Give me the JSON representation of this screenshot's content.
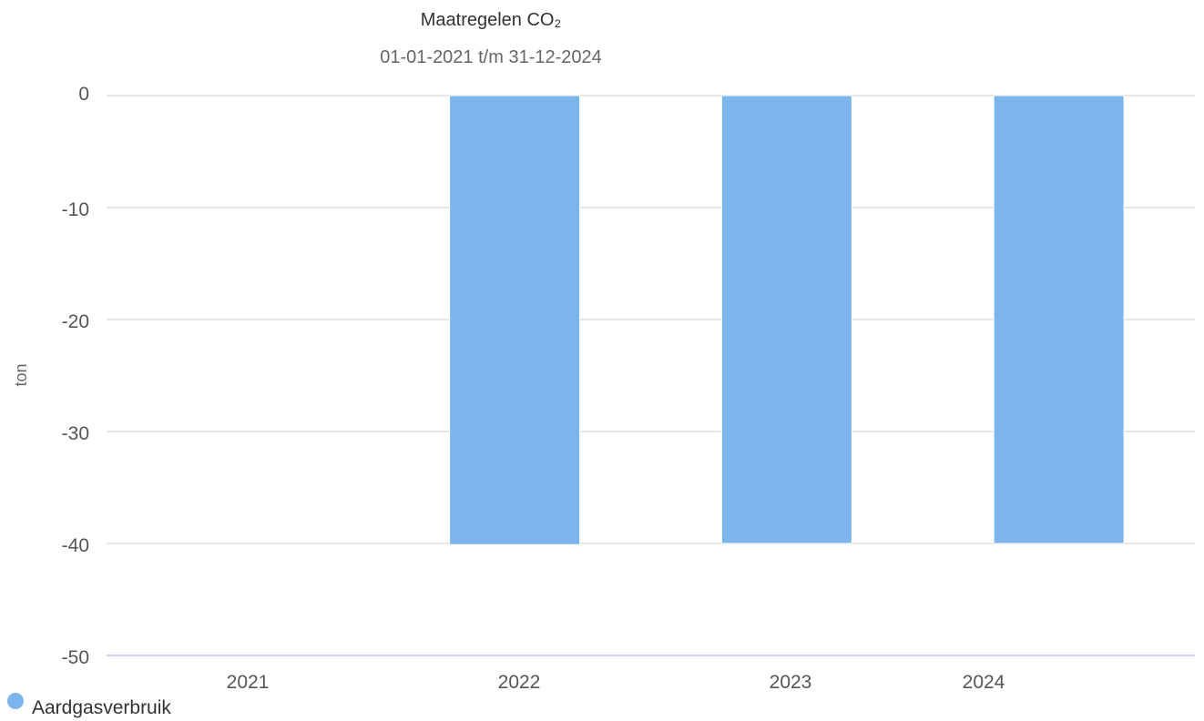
{
  "chart_data": {
    "type": "bar",
    "title": "Maatregelen CO₂",
    "subtitle": "01-01-2021 t/m 31-12-2024",
    "ylabel": "ton",
    "ylim": [
      -50,
      0
    ],
    "yticks": [
      0,
      -10,
      -20,
      -30,
      -40,
      -50
    ],
    "categories": [
      "2021",
      "2022",
      "2023",
      "2024"
    ],
    "series": [
      {
        "name": "Aardgasverbruik",
        "color": "#7cb5ec",
        "values": [
          0,
          -40.1,
          -40,
          -40
        ]
      }
    ],
    "grid": true,
    "legend_position": "bottom-left"
  }
}
